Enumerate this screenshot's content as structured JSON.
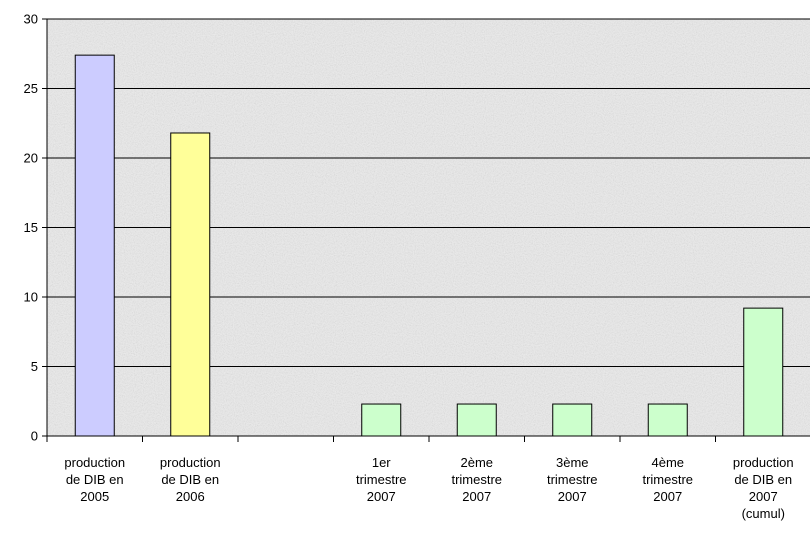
{
  "chart_data": {
    "type": "bar",
    "title": "",
    "xlabel": "",
    "ylabel": "",
    "ylim": [
      0,
      30
    ],
    "yticks": [
      0,
      5,
      10,
      15,
      20,
      25,
      30
    ],
    "grid": true,
    "legend": "none",
    "categories": [
      [
        "production",
        "de DIB en",
        "2005"
      ],
      [
        "production",
        "de DIB en",
        "2006"
      ],
      [],
      [
        "1er",
        "trimestre",
        "2007"
      ],
      [
        "2ème",
        "trimestre",
        "2007"
      ],
      [
        "3ème",
        "trimestre",
        "2007"
      ],
      [
        "4ème",
        "trimestre",
        "2007"
      ],
      [
        "production",
        "de DIB en",
        "2007",
        "(cumul)"
      ]
    ],
    "values": [
      27.4,
      21.8,
      null,
      2.3,
      2.3,
      2.3,
      2.3,
      9.2
    ],
    "bar_colors": [
      "#ccccff",
      "#ffff99",
      null,
      "#ccffcc",
      "#ccffcc",
      "#ccffcc",
      "#ccffcc",
      "#ccffcc"
    ],
    "plot_background": "#ececec"
  }
}
